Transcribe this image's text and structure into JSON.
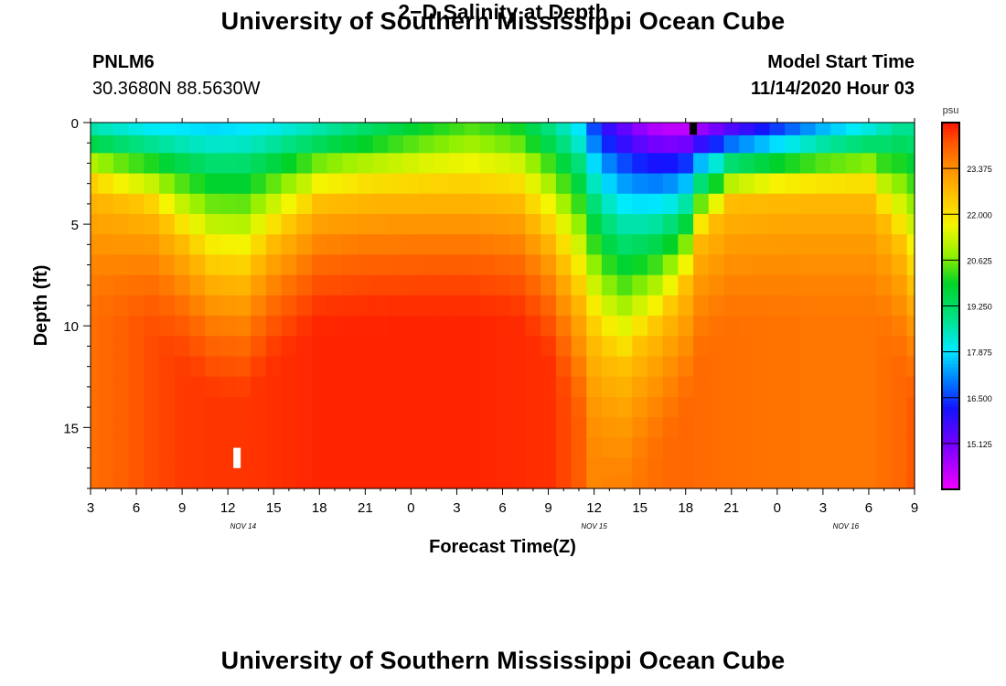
{
  "header": {
    "title": "University of Southern Mississippi Ocean Cube",
    "footer_title": "University of Southern Mississippi Ocean Cube",
    "station_id": "PNLM6",
    "coordinates": "30.3680N 88.5630W",
    "subtitle": "2−D Salinity at Depth",
    "model_start_label": "Model Start Time",
    "model_start_time": "11/14/2020 Hour 03"
  },
  "chart_data": {
    "type": "heatmap",
    "title": "2-D Salinity at Depth",
    "xlabel": "Forecast Time(Z)",
    "ylabel": "Depth (ft)",
    "x_hours": [
      0,
      3,
      6,
      9,
      12,
      15,
      18,
      21,
      24,
      27,
      30,
      33,
      36,
      39,
      42,
      45,
      48,
      51,
      54
    ],
    "x_tick_labels": [
      "3",
      "6",
      "9",
      "12",
      "15",
      "18",
      "21",
      "0",
      "3",
      "6",
      "9",
      "12",
      "15",
      "18",
      "21",
      "0",
      "3",
      "6",
      "9"
    ],
    "date_labels": [
      {
        "text": "NOV 14",
        "hour": 10
      },
      {
        "text": "NOV 15",
        "hour": 33
      },
      {
        "text": "NOV 16",
        "hour": 49.5
      }
    ],
    "y_ticks": [
      0,
      5,
      10,
      15
    ],
    "y_minor_step": 1,
    "ylim": [
      0,
      18
    ],
    "xlim": [
      0,
      54
    ],
    "colorbar": {
      "unit": "psu",
      "min": 13.75,
      "max": 24.75,
      "tick_values": [
        23.375,
        22.0,
        20.625,
        19.25,
        17.875,
        16.5,
        15.125
      ],
      "tick_labels": [
        "23.375",
        "22.000",
        "20.625",
        "19.250",
        "17.875",
        "16.500",
        "15.125"
      ]
    },
    "time_steps": [
      0,
      1,
      2,
      3,
      4,
      5,
      6,
      7,
      8,
      9,
      10,
      11,
      12,
      13,
      14,
      15,
      16,
      17,
      18,
      19,
      20,
      21,
      22,
      23,
      24,
      25,
      26,
      27,
      28,
      29,
      30,
      31,
      32,
      33,
      34,
      35,
      36,
      37,
      38,
      39,
      40,
      41,
      42,
      43,
      44,
      45,
      46,
      47,
      48,
      49,
      50,
      51,
      52,
      53,
      54
    ],
    "depth_levels": [
      0.25,
      1,
      2,
      3,
      4,
      5,
      6,
      7,
      8,
      9,
      10,
      11,
      12,
      13,
      14,
      15,
      16,
      17,
      17.75
    ],
    "salinity_profile_keypoints": {
      "hours": [
        0,
        2,
        4,
        6,
        8,
        10,
        12,
        15,
        18,
        22,
        25,
        28,
        30,
        31,
        32,
        32.5,
        33,
        34,
        35,
        36,
        37.5,
        39,
        40,
        42,
        45,
        48,
        51,
        53,
        54
      ],
      "surface_psu": [
        18.6,
        18.3,
        18.0,
        17.9,
        17.8,
        17.9,
        18.1,
        18.6,
        19.2,
        20.0,
        20.4,
        20.0,
        19.0,
        18.5,
        17.9,
        17.4,
        16.6,
        15.8,
        15.3,
        14.8,
        14.3,
        14.3,
        14.7,
        15.5,
        16.5,
        17.5,
        18.2,
        18.8,
        18.8
      ],
      "halocline_top_ft": [
        3.2,
        3.8,
        4.3,
        5.8,
        7.3,
        7.6,
        5.8,
        3.9,
        3.6,
        3.5,
        3.5,
        3.8,
        5.5,
        7.0,
        8.5,
        9.5,
        10.5,
        11.5,
        12.0,
        11.0,
        9.8,
        8.0,
        5.5,
        3.8,
        3.5,
        3.4,
        3.4,
        6.0,
        8.0
      ],
      "deep_psu": [
        23.8,
        24.0,
        24.25,
        24.4,
        24.45,
        24.45,
        24.5,
        24.6,
        24.6,
        24.6,
        24.6,
        24.55,
        24.5,
        24.3,
        24.05,
        23.6,
        23.5,
        23.55,
        23.6,
        23.7,
        23.85,
        23.9,
        23.85,
        23.8,
        23.75,
        23.7,
        23.7,
        23.9,
        24.1
      ]
    },
    "markers": [
      {
        "hour": 9.6,
        "depth_from": 16.0,
        "depth_to": 17.0,
        "color": "#ffffff"
      },
      {
        "hour": 39.5,
        "depth_from": 0,
        "depth_to": 0.6,
        "color": "#000000"
      }
    ]
  }
}
